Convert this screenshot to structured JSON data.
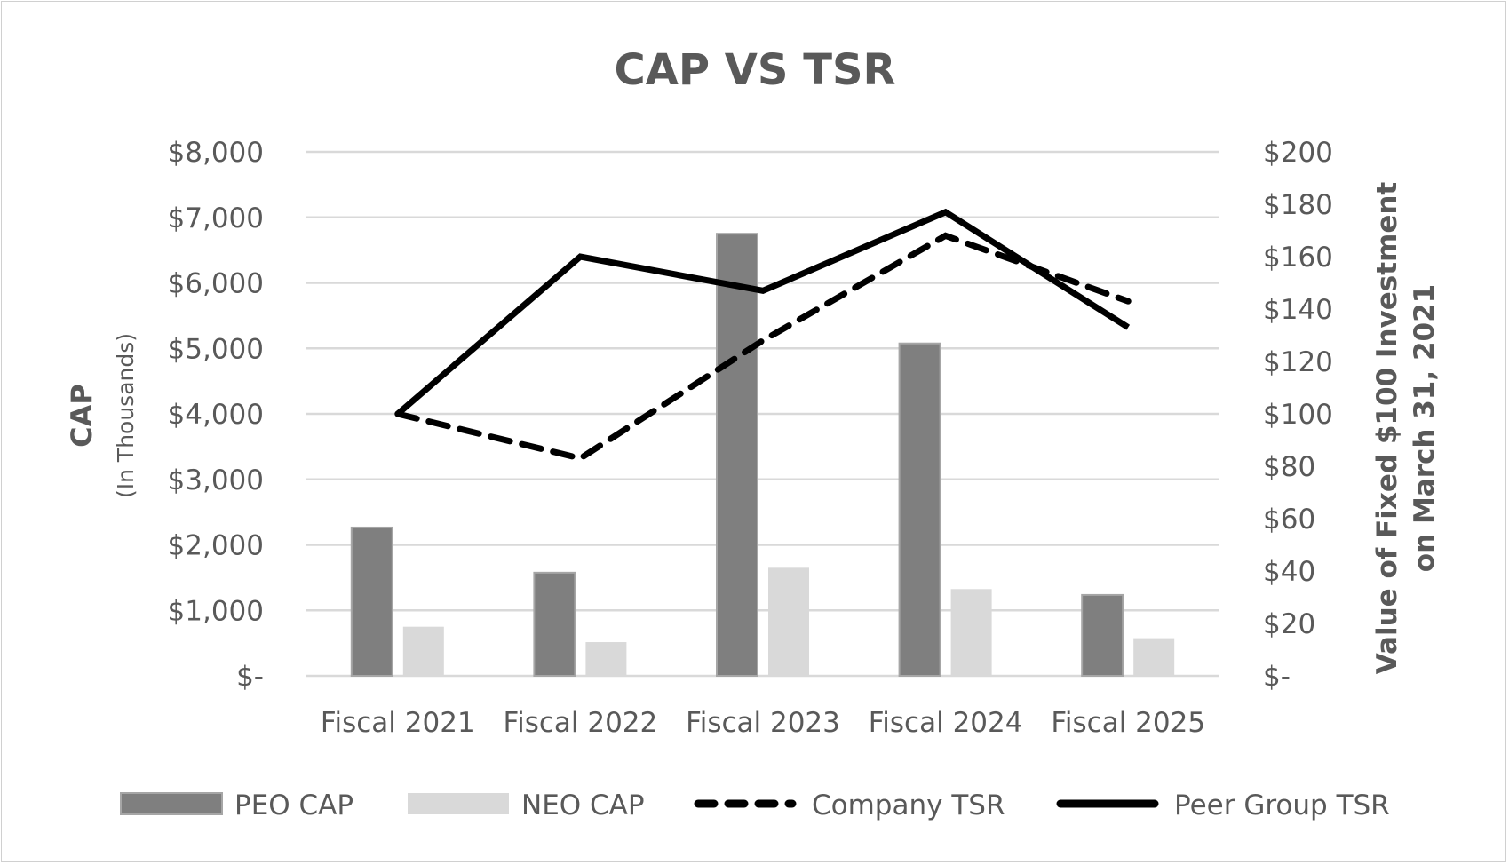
{
  "chart_data": {
    "type": "bar+line",
    "title": "CAP VS TSR",
    "categories": [
      "Fiscal 2021",
      "Fiscal 2022",
      "Fiscal 2023",
      "Fiscal 2024",
      "Fiscal 2025"
    ],
    "ylabel": "CAP",
    "ylabel_sub": "(In Thousands)",
    "y2label_line1": "Value of Fixed $100 Investment",
    "y2label_line2": "on March 31, 2021",
    "ylim": [
      0,
      8000
    ],
    "y2lim": [
      0,
      200
    ],
    "yticks": [
      "$-",
      "$1,000",
      "$2,000",
      "$3,000",
      "$4,000",
      "$5,000",
      "$6,000",
      "$7,000",
      "$8,000"
    ],
    "y2ticks": [
      "$-",
      "$20",
      "$40",
      "$60",
      "$80",
      "$100",
      "$120",
      "$140",
      "$160",
      "$180",
      "$200"
    ],
    "grid": true,
    "legend_position": "bottom",
    "series": [
      {
        "name": "PEO CAP",
        "type": "bar",
        "axis": "left",
        "color": "#7f7f7f",
        "values": [
          2265,
          1575,
          6750,
          5075,
          1235
        ]
      },
      {
        "name": "NEO CAP",
        "type": "bar",
        "axis": "left",
        "color": "#d9d9d9",
        "values": [
          750,
          515,
          1650,
          1325,
          575
        ]
      },
      {
        "name": "Company TSR",
        "type": "line",
        "style": "dashed",
        "axis": "right",
        "color": "#000000",
        "values": [
          100,
          83,
          128,
          168,
          143
        ]
      },
      {
        "name": "Peer Group TSR",
        "type": "line",
        "style": "solid",
        "axis": "right",
        "color": "#000000",
        "values": [
          100,
          160,
          147,
          177,
          133
        ]
      }
    ]
  }
}
